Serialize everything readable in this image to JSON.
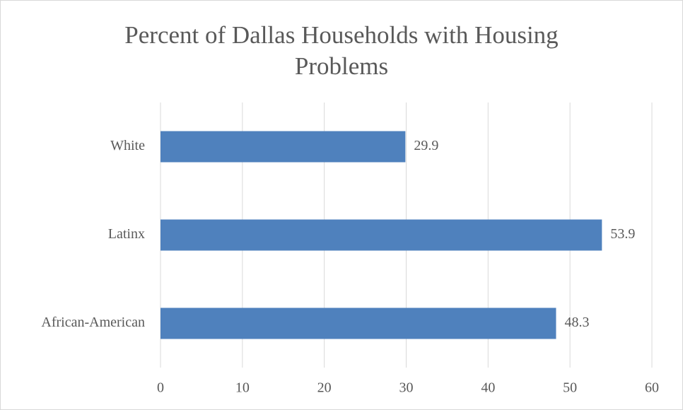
{
  "chart_data": {
    "type": "bar",
    "orientation": "horizontal",
    "title": "Percent of Dallas Households with Housing Problems",
    "categories": [
      "White",
      "Latinx",
      "African-American"
    ],
    "values": [
      29.9,
      53.9,
      48.3
    ],
    "color": "#4f81bd",
    "xlim": [
      0,
      60
    ],
    "xticks": [
      0,
      10,
      20,
      30,
      40,
      50,
      60
    ],
    "grid": true
  }
}
